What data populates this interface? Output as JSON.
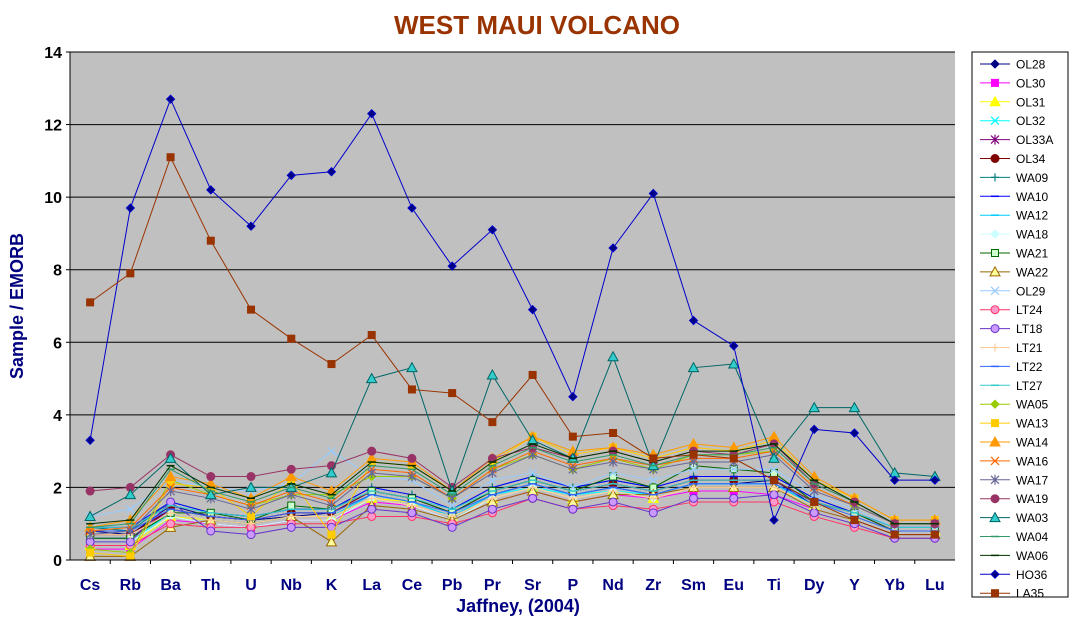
{
  "chart_data": {
    "type": "line",
    "title": "WEST MAUI VOLCANO",
    "xlabel": "Jaffney, (2004)",
    "ylabel": "Sample / EMORB",
    "ylim": [
      0,
      14
    ],
    "yticks": [
      "0",
      "2",
      "4",
      "6",
      "8",
      "10",
      "12",
      "14"
    ],
    "grid": true,
    "legend_position": "right",
    "categories": [
      "Cs",
      "Rb",
      "Ba",
      "Th",
      "U",
      "Nb",
      "K",
      "La",
      "Ce",
      "Pb",
      "Pr",
      "Sr",
      "P",
      "Nd",
      "Zr",
      "Sm",
      "Eu",
      "Ti",
      "Dy",
      "Y",
      "Yb",
      "Lu"
    ],
    "series": [
      {
        "name": "OL28",
        "color": "#000080",
        "marker": "diamond",
        "values": [
          0.8,
          0.7,
          1.5,
          1.2,
          1.1,
          1.2,
          1.3,
          1.8,
          1.6,
          1.2,
          1.8,
          2.1,
          1.8,
          2.0,
          1.8,
          2.1,
          2.1,
          2.2,
          1.5,
          1.2,
          0.8,
          0.8
        ]
      },
      {
        "name": "OL30",
        "color": "#FF00FF",
        "marker": "square",
        "values": [
          0.3,
          0.3,
          1.1,
          1.0,
          0.9,
          1.1,
          1.1,
          1.6,
          1.5,
          1.1,
          1.6,
          1.9,
          1.6,
          1.8,
          1.7,
          1.9,
          1.9,
          1.8,
          1.4,
          1.1,
          0.7,
          0.7
        ]
      },
      {
        "name": "OL31",
        "color": "#FFFF00",
        "marker": "triangle",
        "values": [
          0.4,
          0.4,
          1.2,
          1.1,
          1.0,
          1.2,
          1.2,
          1.7,
          1.6,
          1.2,
          1.7,
          2.0,
          1.7,
          1.9,
          1.7,
          2.0,
          2.0,
          2.0,
          1.5,
          1.2,
          0.8,
          0.8
        ]
      },
      {
        "name": "OL32",
        "color": "#00FFFF",
        "marker": "x",
        "values": [
          0.5,
          0.5,
          1.3,
          1.1,
          1.0,
          1.2,
          1.2,
          1.8,
          1.6,
          1.2,
          1.8,
          2.0,
          1.8,
          1.9,
          1.8,
          2.1,
          2.1,
          2.1,
          1.5,
          1.2,
          0.8,
          0.8
        ]
      },
      {
        "name": "OL33A",
        "color": "#800080",
        "marker": "star",
        "values": [
          0.6,
          0.6,
          1.4,
          1.2,
          1.1,
          1.3,
          1.3,
          1.9,
          1.7,
          1.3,
          1.9,
          2.2,
          1.9,
          2.1,
          1.9,
          2.2,
          2.2,
          2.2,
          1.6,
          1.3,
          0.8,
          0.8
        ]
      },
      {
        "name": "OL34",
        "color": "#800000",
        "marker": "circle",
        "values": [
          0.7,
          0.7,
          1.4,
          1.2,
          1.1,
          1.3,
          1.3,
          1.9,
          1.7,
          1.3,
          1.9,
          2.2,
          1.9,
          2.1,
          1.9,
          2.2,
          2.2,
          2.2,
          1.6,
          1.3,
          0.8,
          0.8
        ]
      },
      {
        "name": "WA09",
        "color": "#008080",
        "marker": "plus",
        "values": [
          0.9,
          0.8,
          1.6,
          1.3,
          1.2,
          1.4,
          1.4,
          2.0,
          1.8,
          1.4,
          2.0,
          2.3,
          2.0,
          2.2,
          2.0,
          2.3,
          2.3,
          2.3,
          1.7,
          1.3,
          0.9,
          0.9
        ]
      },
      {
        "name": "WA10",
        "color": "#0000FF",
        "marker": "dash",
        "values": [
          0.9,
          0.9,
          1.6,
          1.3,
          1.2,
          1.4,
          1.4,
          2.0,
          1.8,
          1.4,
          2.0,
          2.3,
          2.0,
          2.2,
          2.0,
          2.3,
          2.3,
          2.3,
          1.7,
          1.3,
          0.9,
          0.9
        ]
      },
      {
        "name": "WA12",
        "color": "#00CCFF",
        "marker": "dash",
        "values": [
          0.6,
          0.6,
          1.3,
          1.1,
          1.0,
          1.2,
          1.2,
          1.8,
          1.6,
          1.2,
          1.8,
          2.1,
          1.8,
          2.0,
          1.8,
          2.1,
          2.1,
          2.1,
          1.5,
          1.2,
          0.8,
          0.8
        ]
      },
      {
        "name": "WA18",
        "color": "#CCFFFF",
        "marker": "diamond",
        "values": [
          0.5,
          0.5,
          1.2,
          1.0,
          0.9,
          1.1,
          1.1,
          1.7,
          1.5,
          1.1,
          1.7,
          2.0,
          1.7,
          1.9,
          1.7,
          2.0,
          2.0,
          2.0,
          1.4,
          1.1,
          0.7,
          0.7
        ]
      },
      {
        "name": "WA21",
        "color": "#006600",
        "fill": "#CCFFCC",
        "marker": "square",
        "values": [
          0.6,
          0.6,
          1.3,
          1.3,
          1.1,
          1.5,
          1.4,
          1.9,
          1.7,
          1.3,
          1.9,
          2.2,
          1.9,
          2.3,
          2.0,
          2.6,
          2.5,
          2.4,
          1.6,
          1.3,
          0.8,
          0.8
        ]
      },
      {
        "name": "WA22",
        "color": "#996600",
        "fill": "#FFFF99",
        "marker": "triangle",
        "values": [
          0.1,
          0.1,
          0.9,
          1.1,
          1.0,
          1.2,
          0.5,
          1.5,
          1.4,
          1.1,
          1.6,
          1.9,
          1.6,
          1.8,
          1.8,
          2.0,
          2.0,
          2.0,
          1.4,
          1.1,
          0.7,
          0.7
        ]
      },
      {
        "name": "OL29",
        "color": "#99CCFF",
        "marker": "x",
        "values": [
          1.2,
          1.4,
          2.2,
          2.0,
          1.9,
          2.1,
          3.0,
          2.3,
          2.2,
          1.5,
          2.2,
          2.4,
          2.0,
          2.4,
          2.2,
          2.5,
          2.5,
          2.5,
          1.8,
          1.4,
          0.9,
          0.9
        ]
      },
      {
        "name": "LT24",
        "color": "#FF3366",
        "fill": "#FF99CC",
        "marker": "circle",
        "values": [
          0.4,
          0.4,
          1.0,
          0.9,
          0.9,
          1.0,
          1.0,
          1.2,
          1.2,
          1.0,
          1.3,
          1.7,
          1.4,
          1.5,
          1.4,
          1.6,
          1.6,
          1.6,
          1.2,
          0.9,
          0.6,
          0.6
        ]
      },
      {
        "name": "LT18",
        "color": "#6633CC",
        "fill": "#CC99FF",
        "marker": "circle",
        "values": [
          0.5,
          0.5,
          1.6,
          0.8,
          0.7,
          0.9,
          0.9,
          1.4,
          1.3,
          0.9,
          1.4,
          1.7,
          1.4,
          1.6,
          1.3,
          1.7,
          1.7,
          1.8,
          1.3,
          1.0,
          0.6,
          0.6
        ]
      },
      {
        "name": "LT21",
        "color": "#FFCC99",
        "marker": "plus",
        "values": [
          0.7,
          0.7,
          1.3,
          1.1,
          1.0,
          1.2,
          1.2,
          1.7,
          1.5,
          1.2,
          1.7,
          2.0,
          1.7,
          1.9,
          1.7,
          2.0,
          2.0,
          2.0,
          1.5,
          1.2,
          0.8,
          0.8
        ]
      },
      {
        "name": "LT22",
        "color": "#3366FF",
        "marker": "dash",
        "values": [
          0.8,
          0.8,
          1.4,
          1.2,
          1.1,
          1.3,
          1.3,
          1.8,
          1.6,
          1.3,
          1.8,
          2.1,
          1.8,
          2.0,
          1.8,
          2.1,
          2.1,
          2.1,
          1.6,
          1.2,
          0.8,
          0.8
        ]
      },
      {
        "name": "LT27",
        "color": "#33CCCC",
        "marker": "dash",
        "values": [
          0.9,
          0.9,
          1.5,
          1.3,
          1.2,
          1.4,
          1.4,
          1.9,
          1.7,
          1.4,
          1.9,
          2.2,
          1.9,
          2.1,
          1.9,
          2.2,
          2.2,
          2.2,
          1.6,
          1.3,
          0.9,
          0.9
        ]
      },
      {
        "name": "WA05",
        "color": "#99CC00",
        "marker": "diamond",
        "values": [
          0.3,
          0.2,
          2.2,
          1.8,
          1.5,
          1.8,
          1.8,
          2.3,
          2.3,
          1.7,
          2.5,
          2.9,
          2.5,
          2.8,
          2.5,
          2.9,
          2.9,
          3.0,
          2.0,
          1.5,
          1.0,
          1.0
        ]
      },
      {
        "name": "WA13",
        "color": "#FFCC00",
        "marker": "square",
        "values": [
          0.2,
          0.1,
          2.1,
          2.0,
          1.2,
          2.2,
          0.7,
          2.7,
          2.6,
          1.9,
          2.7,
          3.4,
          2.9,
          3.1,
          2.8,
          3.1,
          3.0,
          3.3,
          2.2,
          1.7,
          1.1,
          1.1
        ]
      },
      {
        "name": "WA14",
        "color": "#FF9900",
        "marker": "triangle",
        "values": [
          0.9,
          1.1,
          2.3,
          2.1,
          1.7,
          2.3,
          1.9,
          2.8,
          2.7,
          1.9,
          2.8,
          3.4,
          3.0,
          3.1,
          2.9,
          3.2,
          3.1,
          3.4,
          2.3,
          1.7,
          1.1,
          1.1
        ]
      },
      {
        "name": "WA16",
        "color": "#FF6600",
        "marker": "x",
        "values": [
          0.8,
          0.9,
          2.0,
          1.8,
          1.5,
          1.9,
          1.6,
          2.5,
          2.4,
          1.7,
          2.5,
          3.0,
          2.6,
          2.8,
          2.6,
          2.8,
          2.8,
          3.0,
          2.0,
          1.5,
          1.0,
          1.0
        ]
      },
      {
        "name": "WA17",
        "color": "#666699",
        "marker": "star",
        "values": [
          0.7,
          0.8,
          1.9,
          1.7,
          1.4,
          1.8,
          1.5,
          2.4,
          2.3,
          1.7,
          2.4,
          2.9,
          2.5,
          2.7,
          2.5,
          2.7,
          2.7,
          2.9,
          1.9,
          1.5,
          1.0,
          1.0
        ]
      },
      {
        "name": "WA19",
        "color": "#993366",
        "fill": "#993366",
        "marker": "circle",
        "values": [
          1.9,
          2.0,
          2.9,
          2.3,
          2.3,
          2.5,
          2.6,
          3.0,
          2.8,
          2.0,
          2.8,
          3.1,
          2.8,
          3.0,
          2.7,
          3.0,
          2.9,
          3.2,
          2.1,
          1.6,
          1.0,
          1.0
        ]
      },
      {
        "name": "WA03",
        "color": "#006666",
        "fill": "#33CCCC",
        "marker": "triangle",
        "values": [
          1.2,
          1.8,
          2.8,
          1.8,
          2.0,
          2.0,
          2.4,
          5.0,
          5.3,
          1.9,
          5.1,
          3.3,
          2.8,
          5.6,
          2.6,
          5.3,
          5.4,
          2.8,
          4.2,
          4.2,
          2.4,
          2.3
        ]
      },
      {
        "name": "WA04",
        "color": "#339966",
        "marker": "dash",
        "values": [
          0.9,
          1.0,
          2.5,
          1.9,
          1.6,
          2.0,
          1.7,
          2.6,
          2.5,
          1.8,
          2.6,
          3.1,
          2.7,
          2.9,
          2.6,
          2.9,
          2.9,
          3.1,
          2.1,
          1.6,
          1.0,
          1.0
        ]
      },
      {
        "name": "WA06",
        "color": "#003300",
        "marker": "dash",
        "values": [
          1.0,
          1.1,
          2.6,
          2.0,
          1.7,
          2.1,
          1.8,
          2.7,
          2.6,
          1.9,
          2.7,
          3.2,
          2.8,
          3.0,
          2.7,
          3.0,
          3.0,
          3.2,
          2.2,
          1.6,
          1.0,
          1.0
        ]
      },
      {
        "name": "HO36",
        "color": "#0000CC",
        "fill": "#000080",
        "marker": "diamond",
        "values": [
          3.3,
          9.7,
          12.7,
          10.2,
          9.2,
          10.6,
          10.7,
          12.3,
          9.7,
          8.1,
          9.1,
          6.9,
          4.5,
          8.6,
          10.1,
          6.6,
          5.9,
          1.1,
          3.6,
          3.5,
          2.2,
          2.2
        ]
      },
      {
        "name": "LA35",
        "color": "#993300",
        "fill": "#993300",
        "marker": "square",
        "values": [
          7.1,
          7.9,
          11.1,
          8.8,
          6.9,
          6.1,
          5.4,
          6.2,
          4.7,
          4.6,
          3.8,
          5.1,
          3.4,
          3.5,
          2.8,
          2.9,
          2.8,
          2.2,
          1.6,
          1.1,
          0.7,
          0.7
        ]
      }
    ]
  }
}
